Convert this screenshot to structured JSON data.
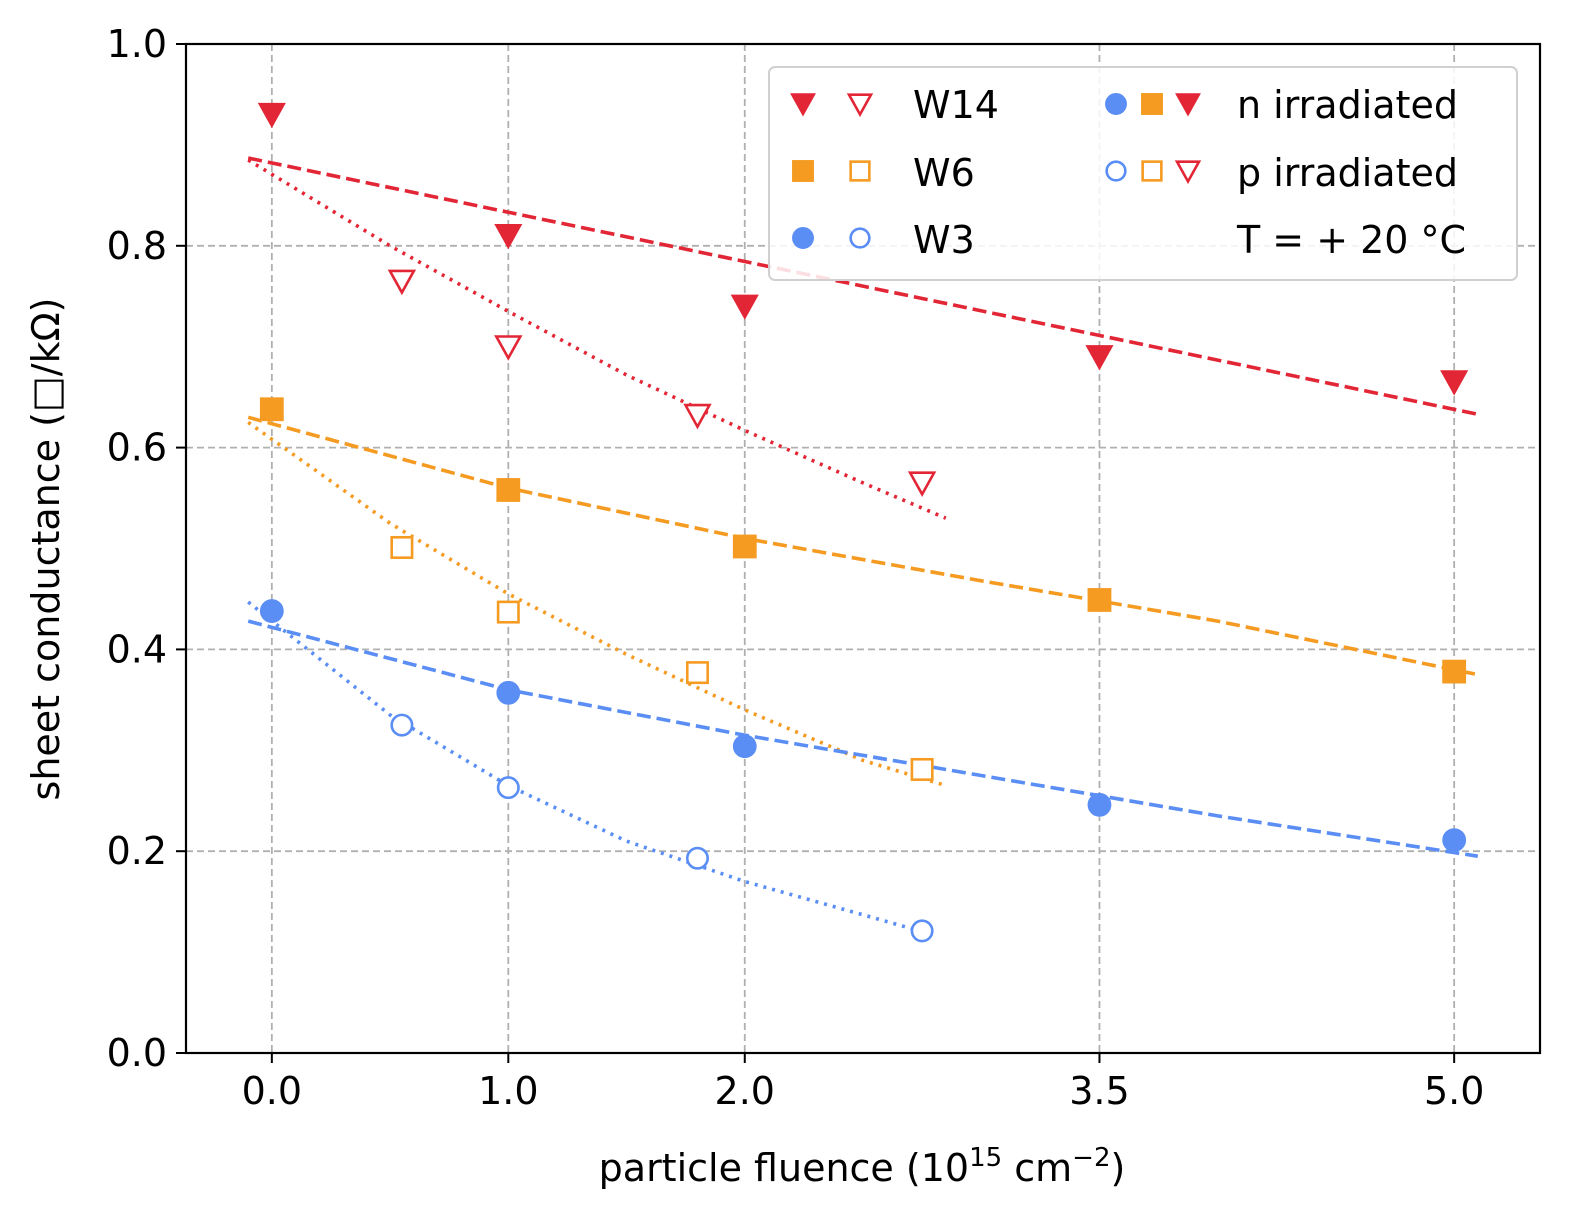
{
  "chart_data": {
    "type": "scatter",
    "title": "",
    "xlabel": "particle fluence (10",
    "xlabel_sup": "15",
    "xlabel_unit": " cm",
    "xlabel_unit_sup": "−2",
    "xlabel_close": ")",
    "ylabel": "sheet conductance (□/kΩ)",
    "xlim": [
      -0.363,
      5.363
    ],
    "ylim": [
      0.0,
      1.0
    ],
    "x_ticks": [
      {
        "pos": 0.0,
        "label": "0.0"
      },
      {
        "pos": 1.0,
        "label": "1.0"
      },
      {
        "pos": 2.0,
        "label": "2.0"
      },
      {
        "pos": 3.5,
        "label": "3.5"
      },
      {
        "pos": 5.0,
        "label": "5.0"
      }
    ],
    "y_ticks": [
      {
        "pos": 0.0,
        "label": "0.0"
      },
      {
        "pos": 0.2,
        "label": "0.2"
      },
      {
        "pos": 0.4,
        "label": "0.4"
      },
      {
        "pos": 0.6,
        "label": "0.6"
      },
      {
        "pos": 0.8,
        "label": "0.8"
      },
      {
        "pos": 1.0,
        "label": "1.0"
      }
    ],
    "grid": true,
    "colors": {
      "W14": "#e32636",
      "W6": "#f59b22",
      "W3": "#5a8ef5",
      "grid": "#b0b0b0"
    },
    "series": [
      {
        "name": "W14 n irradiated",
        "sample": "W14",
        "irradiation": "n",
        "marker": "triangle-down",
        "filled": true,
        "x": [
          0.0,
          1.0,
          2.0,
          3.5,
          5.0
        ],
        "y": [
          0.93,
          0.81,
          0.74,
          0.69,
          0.665
        ]
      },
      {
        "name": "W14 p irradiated",
        "sample": "W14",
        "irradiation": "p",
        "marker": "triangle-down",
        "filled": false,
        "x": [
          0.55,
          1.0,
          1.8,
          2.75
        ],
        "y": [
          0.765,
          0.7,
          0.632,
          0.565
        ]
      },
      {
        "name": "W6 n irradiated",
        "sample": "W6",
        "irradiation": "n",
        "marker": "square",
        "filled": true,
        "x": [
          0.0,
          1.0,
          2.0,
          3.5,
          5.0
        ],
        "y": [
          0.638,
          0.558,
          0.502,
          0.449,
          0.378
        ]
      },
      {
        "name": "W6 p irradiated",
        "sample": "W6",
        "irradiation": "p",
        "marker": "square",
        "filled": false,
        "x": [
          0.55,
          1.0,
          1.8,
          2.75
        ],
        "y": [
          0.501,
          0.437,
          0.377,
          0.281
        ]
      },
      {
        "name": "W3 n irradiated",
        "sample": "W3",
        "irradiation": "n",
        "marker": "circle",
        "filled": true,
        "x": [
          0.0,
          1.0,
          2.0,
          3.5,
          5.0
        ],
        "y": [
          0.438,
          0.357,
          0.304,
          0.246,
          0.211
        ]
      },
      {
        "name": "W3 p irradiated",
        "sample": "W3",
        "irradiation": "p",
        "marker": "circle",
        "filled": false,
        "x": [
          0.55,
          1.0,
          1.8,
          2.75
        ],
        "y": [
          0.325,
          0.263,
          0.193,
          0.121
        ]
      }
    ],
    "fits": [
      {
        "name": "W14 n fit",
        "sample": "W14",
        "style": "dashed",
        "x": [
          -0.1,
          5.1
        ],
        "y": [
          0.887,
          0.633
        ]
      },
      {
        "name": "W14 p fit",
        "sample": "W14",
        "style": "dotted",
        "x": [
          -0.1,
          0.5,
          1.0,
          1.5,
          2.0,
          2.5,
          2.85
        ],
        "y": [
          0.885,
          0.8,
          0.735,
          0.672,
          0.617,
          0.565,
          0.53
        ]
      },
      {
        "name": "W6 n fit",
        "sample": "W6",
        "style": "dashed",
        "x": [
          -0.1,
          1.0,
          2.0,
          3.0,
          4.0,
          5.1
        ],
        "y": [
          0.63,
          0.56,
          0.51,
          0.468,
          0.428,
          0.375
        ]
      },
      {
        "name": "W6 p fit",
        "sample": "W6",
        "style": "dotted",
        "x": [
          -0.1,
          0.5,
          1.0,
          1.5,
          2.0,
          2.5,
          2.85
        ],
        "y": [
          0.625,
          0.525,
          0.455,
          0.395,
          0.34,
          0.29,
          0.265
        ]
      },
      {
        "name": "W3 n fit",
        "sample": "W3",
        "style": "dashed",
        "x": [
          -0.1,
          1.0,
          2.0,
          3.0,
          4.0,
          5.1
        ],
        "y": [
          0.428,
          0.36,
          0.315,
          0.275,
          0.235,
          0.195
        ]
      },
      {
        "name": "W3 p fit",
        "sample": "W3",
        "style": "dotted",
        "x": [
          -0.1,
          0.5,
          1.0,
          1.5,
          2.0,
          2.5,
          2.8
        ],
        "y": [
          0.447,
          0.335,
          0.265,
          0.21,
          0.17,
          0.137,
          0.117
        ]
      }
    ],
    "legend": {
      "placement": "top-right",
      "samples": [
        {
          "label": "W14",
          "sample": "W14",
          "marker": "triangle-down"
        },
        {
          "label": "W6",
          "sample": "W6",
          "marker": "square"
        },
        {
          "label": "W3",
          "sample": "W3",
          "marker": "circle"
        }
      ],
      "irradiation": [
        {
          "label": "n irradiated",
          "filled": true
        },
        {
          "label": "p irradiated",
          "filled": false
        }
      ],
      "temperature": "T = + 20 °C"
    }
  }
}
